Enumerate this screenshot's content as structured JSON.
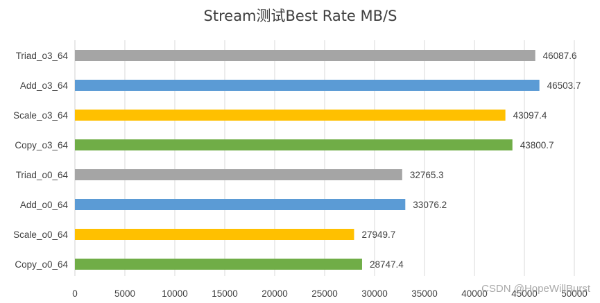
{
  "chart_data": {
    "type": "bar",
    "orientation": "horizontal",
    "title": "Stream测试Best Rate MB/S",
    "xlabel": "",
    "ylabel": "",
    "xlim": [
      0,
      50000
    ],
    "x_ticks": [
      0,
      5000,
      10000,
      15000,
      20000,
      25000,
      30000,
      35000,
      40000,
      45000,
      50000
    ],
    "grid": "vertical",
    "legend": "none",
    "categories": [
      "Triad_o3_64",
      "Add_o3_64",
      "Scale_o3_64",
      "Copy_o3_64",
      "Triad_o0_64",
      "Add_o0_64",
      "Scale_o0_64",
      "Copy_o0_64"
    ],
    "values": [
      46087.6,
      46503.7,
      43097.4,
      43800.7,
      32765.3,
      33076.2,
      27949.7,
      28747.4
    ],
    "value_labels": [
      "46087.6",
      "46503.7",
      "43097.4",
      "43800.7",
      "32765.3",
      "33076.2",
      "27949.7",
      "28747.4"
    ],
    "bar_colors": [
      "#a5a5a5",
      "#5b9bd5",
      "#ffc000",
      "#70ad47",
      "#a5a5a5",
      "#5b9bd5",
      "#ffc000",
      "#70ad47"
    ]
  },
  "watermark": "CSDN @HopeWillBurst"
}
